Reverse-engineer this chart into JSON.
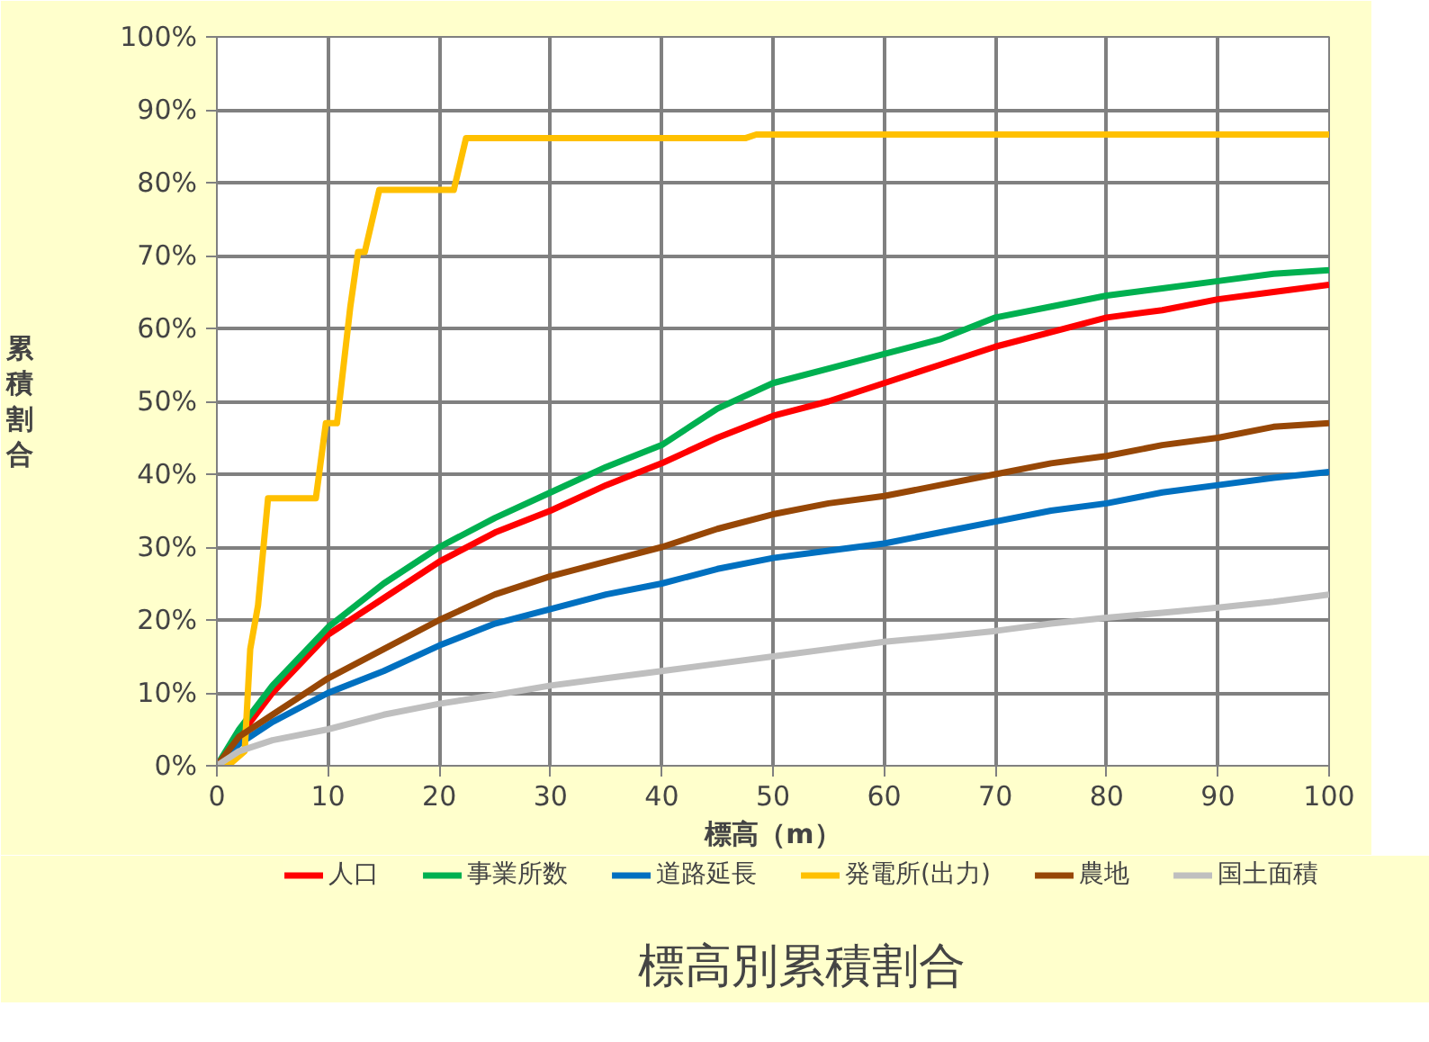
{
  "chart_data": {
    "type": "line",
    "title": "標高別累積割合",
    "xlabel": "標高（m）",
    "ylabel": "累積割合",
    "xlim": [
      0,
      100
    ],
    "xticks": [
      0,
      10,
      20,
      30,
      40,
      50,
      60,
      70,
      80,
      90,
      100
    ],
    "ylim": [
      0,
      100
    ],
    "yticks": [
      {
        "value": 0,
        "label": "0%"
      },
      {
        "value": 10,
        "label": "10%"
      },
      {
        "value": 20,
        "label": "20%"
      },
      {
        "value": 30,
        "label": "30%"
      },
      {
        "value": 40,
        "label": "40%"
      },
      {
        "value": 50,
        "label": "50%"
      },
      {
        "value": 60,
        "label": "60%"
      },
      {
        "value": 70,
        "label": "70%"
      },
      {
        "value": 80,
        "label": "80%"
      },
      {
        "value": 90,
        "label": "90%"
      },
      {
        "value": 100,
        "label": "100%"
      }
    ],
    "grid": true,
    "legend": "bottom",
    "marker": "none",
    "line_style": "solid",
    "x": [
      0,
      2,
      5,
      10,
      15,
      20,
      25,
      30,
      35,
      40,
      45,
      50,
      55,
      60,
      65,
      70,
      75,
      80,
      85,
      90,
      95,
      100
    ],
    "series": [
      {
        "name": "人口",
        "color": "#ff0000",
        "values": [
          0,
          4,
          10,
          18,
          23,
          28,
          32,
          35,
          38.5,
          41.5,
          45,
          48,
          50,
          52.5,
          55,
          57.5,
          59.5,
          61.5,
          62.5,
          64,
          65,
          66
        ]
      },
      {
        "name": "事業所数",
        "color": "#00b050",
        "values": [
          0,
          5,
          11,
          19,
          25,
          30,
          34,
          37.5,
          41,
          44,
          49,
          52.5,
          54.5,
          56.5,
          58.5,
          61.5,
          63,
          64.5,
          65.5,
          66.5,
          67.5,
          68
        ]
      },
      {
        "name": "道路延長",
        "color": "#0070c0",
        "values": [
          0,
          3,
          6,
          10,
          13,
          16.5,
          19.5,
          21.5,
          23.5,
          25,
          27,
          28.5,
          29.5,
          30.5,
          32,
          33.5,
          35,
          36,
          37.5,
          38.5,
          39.5,
          40.3
        ]
      },
      {
        "name": "発電所(出力)",
        "color": "#ffc000",
        "x": [
          0,
          1,
          2.5,
          3,
          3.7,
          4.6,
          8.9,
          9.8,
          10.8,
          12,
          12.7,
          13.3,
          14.6,
          21.3,
          22.4,
          47.5,
          48.5,
          100
        ],
        "values": [
          0,
          0,
          2,
          16,
          22,
          36.7,
          36.7,
          47,
          47,
          63,
          70.5,
          70.5,
          79,
          79,
          86.1,
          86.1,
          86.6,
          86.6
        ]
      },
      {
        "name": "農地",
        "color": "#974706",
        "values": [
          0,
          4,
          7,
          12,
          16,
          20,
          23.5,
          26,
          28,
          30,
          32.5,
          34.5,
          36,
          37,
          38.5,
          40,
          41.5,
          42.5,
          44,
          45,
          46.5,
          47
        ]
      },
      {
        "name": "国土面積",
        "color": "#bfbfbf",
        "values": [
          0,
          2,
          3.5,
          5,
          7,
          8.5,
          9.7,
          11,
          12,
          13,
          14,
          15,
          16,
          17,
          17.7,
          18.5,
          19.5,
          20.3,
          21,
          21.7,
          22.5,
          23.5
        ]
      }
    ]
  }
}
